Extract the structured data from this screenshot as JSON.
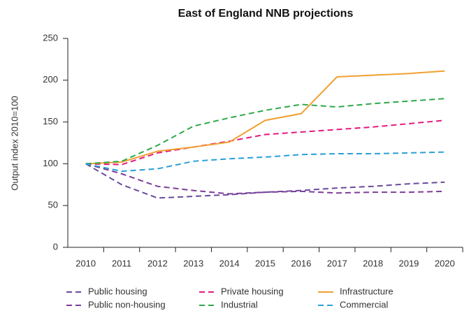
{
  "chart_data": {
    "type": "line",
    "title": "East of England NNB projections",
    "y_label": "Output index 2010=100",
    "categories": [
      "2010",
      "2011",
      "2012",
      "2013",
      "2014",
      "2015",
      "2016",
      "2017",
      "2018",
      "2019",
      "2020"
    ],
    "ylim": [
      0,
      250
    ],
    "yticks": [
      0,
      50,
      100,
      150,
      200,
      250
    ],
    "grid": false,
    "legend": "bottom",
    "series": [
      {
        "name": "Public housing",
        "color": "#6a4a9c",
        "style": "dashed",
        "values": [
          100,
          75,
          59,
          61,
          63,
          66,
          68,
          71,
          73,
          76,
          78
        ]
      },
      {
        "name": "Private housing",
        "color": "#e5197f",
        "style": "dashed",
        "values": [
          100,
          99,
          113,
          120,
          127,
          135,
          138,
          141,
          144,
          148,
          152
        ]
      },
      {
        "name": "Infrastructure",
        "color": "#f0a030",
        "style": "solid",
        "values": [
          100,
          102,
          115,
          120,
          126,
          152,
          160,
          204,
          206,
          208,
          211
        ]
      },
      {
        "name": "Public non-housing",
        "color": "#7d3c98",
        "style": "dashed",
        "values": [
          100,
          88,
          73,
          68,
          64,
          66,
          67,
          65,
          66,
          66,
          67
        ]
      },
      {
        "name": "Industrial",
        "color": "#2ea84a",
        "style": "dashed",
        "values": [
          100,
          103,
          122,
          145,
          155,
          164,
          171,
          168,
          172,
          175,
          178
        ]
      },
      {
        "name": "Commercial",
        "color": "#2a9fd6",
        "style": "dashed",
        "values": [
          100,
          91,
          94,
          103,
          106,
          108,
          111,
          112,
          112,
          113,
          114
        ]
      }
    ]
  }
}
